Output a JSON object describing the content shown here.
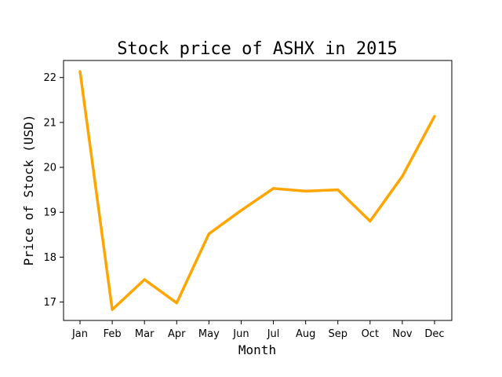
{
  "chart_data": {
    "type": "line",
    "title": "Stock price of ASHX in 2015",
    "xlabel": "Month",
    "ylabel": "Price of Stock (USD)",
    "categories": [
      "Jan",
      "Feb",
      "Mar",
      "Apr",
      "May",
      "Jun",
      "Jul",
      "Aug",
      "Sep",
      "Oct",
      "Nov",
      "Dec"
    ],
    "values": [
      22.14,
      16.83,
      17.5,
      16.98,
      18.52,
      19.04,
      19.53,
      19.47,
      19.5,
      18.8,
      19.8,
      21.14
    ],
    "yticks": [
      17,
      18,
      19,
      20,
      21,
      22
    ],
    "ylim": [
      16.59,
      22.38
    ],
    "grid": false,
    "line_color": "#FFA500"
  }
}
